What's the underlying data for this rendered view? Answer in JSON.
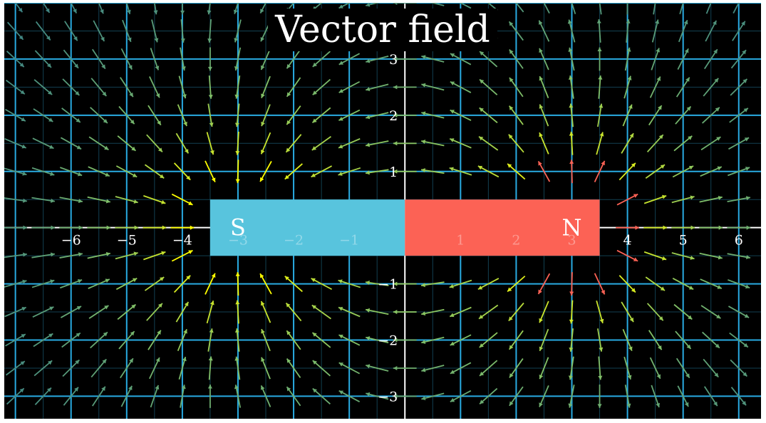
{
  "title": "Vector field",
  "colors": {
    "background": "#000000",
    "grid_major": "#29abe2",
    "grid_minor": "#1a5d75",
    "axis": "#ffffff",
    "south_pole": "#58c4dd",
    "north_pole": "#fc6255",
    "arrow_weak": "#236b8e",
    "arrow_mid": "#83c167",
    "arrow_strong": "#ffff00",
    "arrow_near_n": "#fc6255"
  },
  "chart_data": {
    "type": "vector_field",
    "x_ticks": [
      -6,
      -5,
      -4,
      -3,
      -2,
      -1,
      1,
      2,
      3,
      4,
      5,
      6
    ],
    "y_ticks": [
      -3,
      -2,
      -1,
      1,
      2,
      3
    ],
    "xlim": [
      -7.2,
      6.4
    ],
    "ylim": [
      -3.4,
      4.0
    ],
    "magnet": {
      "x_range": [
        -3.5,
        3.5
      ],
      "y_range": [
        -0.5,
        0.5
      ],
      "south": {
        "label": "S",
        "x_range": [
          -3.5,
          0
        ]
      },
      "north": {
        "label": "N",
        "x_range": [
          0,
          3.5
        ]
      }
    },
    "poles": [
      {
        "label": "S",
        "x": -3,
        "y": 0
      },
      {
        "label": "N",
        "x": 3,
        "y": 0
      }
    ]
  }
}
